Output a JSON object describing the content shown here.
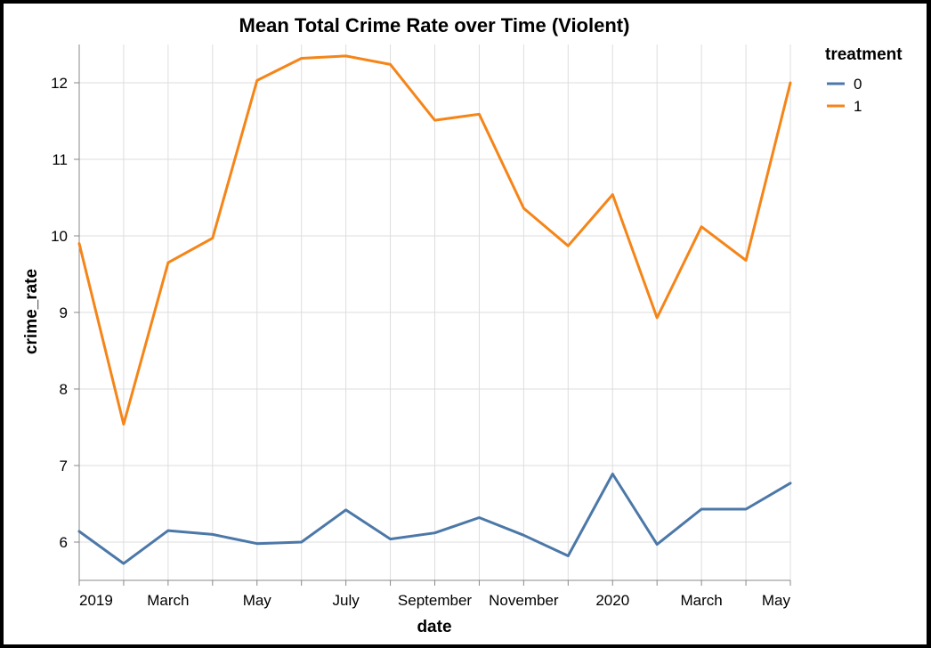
{
  "chart_data": {
    "type": "line",
    "title": "Mean Total Crime Rate over Time (Violent)",
    "xlabel": "date",
    "ylabel": "crime_rate",
    "x": [
      "2019-01",
      "2019-02",
      "2019-03",
      "2019-04",
      "2019-05",
      "2019-06",
      "2019-07",
      "2019-08",
      "2019-09",
      "2019-10",
      "2019-11",
      "2019-12",
      "2020-01",
      "2020-02",
      "2020-03",
      "2020-04",
      "2020-05"
    ],
    "xticks": [
      {
        "label": "2019",
        "date": "2019-01"
      },
      {
        "label": "March",
        "date": "2019-03"
      },
      {
        "label": "May",
        "date": "2019-05"
      },
      {
        "label": "July",
        "date": "2019-07"
      },
      {
        "label": "September",
        "date": "2019-09"
      },
      {
        "label": "November",
        "date": "2019-11"
      },
      {
        "label": "2020",
        "date": "2020-01"
      },
      {
        "label": "March",
        "date": "2020-03"
      },
      {
        "label": "May",
        "date": "2020-05"
      }
    ],
    "yticks": [
      6,
      7,
      8,
      9,
      10,
      11,
      12
    ],
    "ylim": [
      5.5,
      12.5
    ],
    "grid": true,
    "legend": {
      "title": "treatment",
      "placement": "top-right"
    },
    "series": [
      {
        "name": "0",
        "color": "#4c78a8",
        "values": [
          6.14,
          5.72,
          6.15,
          6.1,
          5.98,
          6.0,
          6.42,
          6.04,
          6.12,
          6.32,
          6.09,
          5.82,
          6.89,
          5.97,
          6.43,
          6.43,
          6.77
        ]
      },
      {
        "name": "1",
        "color": "#f58518",
        "values": [
          9.9,
          7.54,
          9.65,
          9.97,
          12.03,
          12.32,
          12.35,
          12.24,
          11.51,
          11.59,
          10.36,
          9.87,
          10.54,
          8.93,
          10.12,
          9.68,
          12.0
        ]
      }
    ]
  }
}
